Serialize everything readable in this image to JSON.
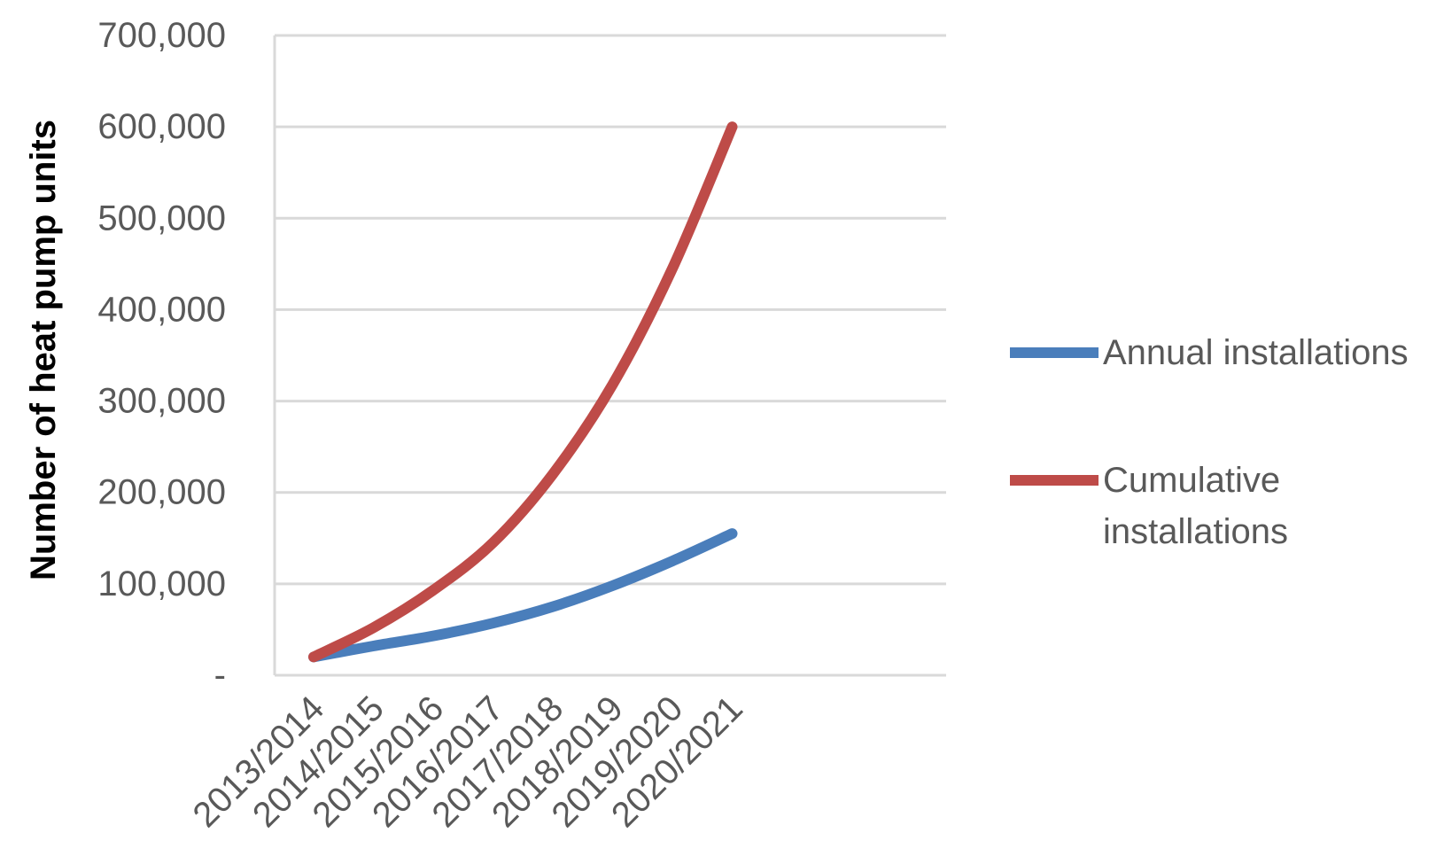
{
  "chart_data": {
    "type": "line",
    "title": "",
    "xlabel": "",
    "ylabel": "Number of heat pump units",
    "ylim": [
      0,
      700000
    ],
    "y_ticks": [
      0,
      100000,
      200000,
      300000,
      400000,
      500000,
      600000,
      700000
    ],
    "y_tick_labels": [
      "-",
      "100,000",
      "200,000",
      "300,000",
      "400,000",
      "500,000",
      "600,000",
      "700,000"
    ],
    "categories": [
      "2013/2014",
      "2014/2015",
      "2015/2016",
      "2016/2017",
      "2017/2018",
      "2018/2019",
      "2019/2020",
      "2020/2021"
    ],
    "grid": "horizontal",
    "legend_position": "right",
    "series": [
      {
        "name": "Annual installations",
        "color": "#4a7ebb",
        "values": [
          20000,
          32000,
          43000,
          57000,
          75000,
          98000,
          125000,
          155000
        ]
      },
      {
        "name": "Cumulative installations",
        "name_lines": [
          "Cumulative",
          "installations"
        ],
        "color": "#be4b48",
        "values": [
          20000,
          52000,
          93000,
          145000,
          220000,
          318000,
          445000,
          600000
        ]
      }
    ]
  }
}
